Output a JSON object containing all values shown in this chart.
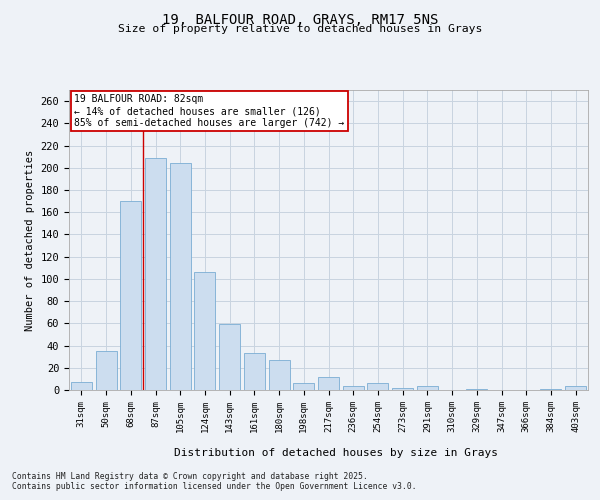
{
  "title_line1": "19, BALFOUR ROAD, GRAYS, RM17 5NS",
  "title_line2": "Size of property relative to detached houses in Grays",
  "xlabel": "Distribution of detached houses by size in Grays",
  "ylabel": "Number of detached properties",
  "categories": [
    "31sqm",
    "50sqm",
    "68sqm",
    "87sqm",
    "105sqm",
    "124sqm",
    "143sqm",
    "161sqm",
    "180sqm",
    "198sqm",
    "217sqm",
    "236sqm",
    "254sqm",
    "273sqm",
    "291sqm",
    "310sqm",
    "329sqm",
    "347sqm",
    "366sqm",
    "384sqm",
    "403sqm"
  ],
  "values": [
    7,
    35,
    170,
    209,
    204,
    106,
    59,
    33,
    27,
    6,
    12,
    4,
    6,
    2,
    4,
    0,
    1,
    0,
    0,
    1,
    4
  ],
  "bar_color": "#ccddef",
  "bar_edge_color": "#7aadd4",
  "grid_color": "#c8d4e0",
  "background_color": "#eef2f7",
  "annotation_text": "19 BALFOUR ROAD: 82sqm\n← 14% of detached houses are smaller (126)\n85% of semi-detached houses are larger (742) →",
  "annotation_box_color": "#ffffff",
  "annotation_box_edge": "#cc0000",
  "vline_color": "#cc0000",
  "ylim": [
    0,
    270
  ],
  "yticks": [
    0,
    20,
    40,
    60,
    80,
    100,
    120,
    140,
    160,
    180,
    200,
    220,
    240,
    260
  ],
  "footer_line1": "Contains HM Land Registry data © Crown copyright and database right 2025.",
  "footer_line2": "Contains public sector information licensed under the Open Government Licence v3.0."
}
